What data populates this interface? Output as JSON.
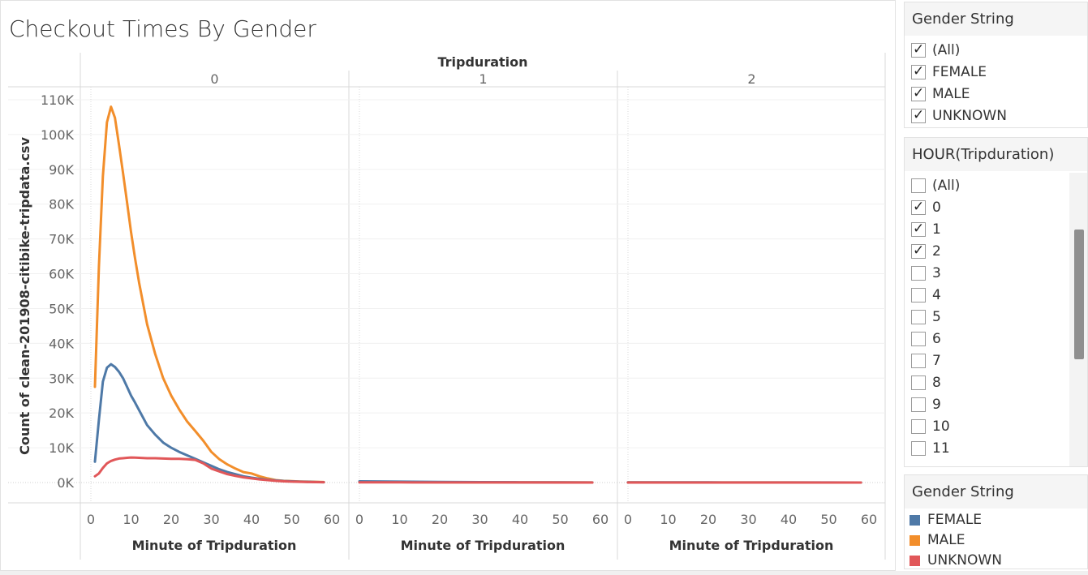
{
  "title": "Checkout Times By Gender",
  "chart_data": {
    "type": "line",
    "panel_header": "Tripduration",
    "panels": [
      "0",
      "1",
      "2"
    ],
    "xlabel": "Minute of Tripduration",
    "ylabel": "Count of clean-201908-citibike-tripdata.csv",
    "xlim": [
      0,
      60
    ],
    "ylim": [
      0,
      115000
    ],
    "x_ticks": [
      0,
      10,
      20,
      30,
      40,
      50,
      60
    ],
    "x_tick_labels": [
      "0",
      "10",
      "20",
      "30",
      "40",
      "50",
      "60"
    ],
    "y_ticks": [
      0,
      10000,
      20000,
      30000,
      40000,
      50000,
      60000,
      70000,
      80000,
      90000,
      100000,
      110000
    ],
    "y_tick_labels": [
      "0K",
      "10K",
      "20K",
      "30K",
      "40K",
      "50K",
      "60K",
      "70K",
      "80K",
      "90K",
      "100K",
      "110K"
    ],
    "colors": {
      "FEMALE": "#4e79a7",
      "MALE": "#f28e2b",
      "UNKNOWN": "#e15759"
    },
    "series": [
      {
        "name": "MALE",
        "panel": "0",
        "x": [
          1,
          2,
          3,
          4,
          5,
          6,
          7,
          8,
          9,
          10,
          11,
          12,
          14,
          16,
          18,
          20,
          22,
          24,
          26,
          28,
          30,
          32,
          34,
          36,
          38,
          40,
          42,
          44,
          46,
          48,
          50,
          52,
          54,
          56,
          58
        ],
        "values": [
          27500,
          62000,
          88000,
          103500,
          108000,
          104800,
          97000,
          89000,
          80500,
          72000,
          64500,
          57500,
          45500,
          37000,
          30000,
          25000,
          21000,
          17500,
          14800,
          12000,
          8800,
          6700,
          5200,
          4000,
          3000,
          2600,
          1800,
          1200,
          700,
          500,
          400,
          300,
          250,
          200,
          150
        ]
      },
      {
        "name": "FEMALE",
        "panel": "0",
        "x": [
          1,
          2,
          3,
          4,
          5,
          6,
          7,
          8,
          9,
          10,
          11,
          12,
          14,
          16,
          18,
          20,
          22,
          24,
          26,
          28,
          30,
          32,
          34,
          36,
          38,
          40,
          42,
          44,
          46,
          48,
          50,
          52,
          54,
          56,
          58
        ],
        "values": [
          6000,
          18000,
          29000,
          33000,
          34000,
          33200,
          31800,
          30000,
          27500,
          25000,
          23000,
          20800,
          16500,
          13800,
          11500,
          10000,
          8800,
          7800,
          6800,
          5800,
          4800,
          3800,
          3000,
          2400,
          1800,
          1400,
          1100,
          800,
          600,
          450,
          350,
          250,
          200,
          150,
          100
        ]
      },
      {
        "name": "UNKNOWN",
        "panel": "0",
        "x": [
          1,
          2,
          3,
          4,
          5,
          6,
          7,
          8,
          9,
          10,
          11,
          12,
          14,
          16,
          18,
          20,
          22,
          24,
          26,
          28,
          30,
          32,
          34,
          36,
          38,
          40,
          42,
          44,
          46,
          48,
          50,
          52,
          54,
          56,
          58
        ],
        "values": [
          1800,
          2600,
          4200,
          5500,
          6200,
          6600,
          6900,
          7000,
          7100,
          7200,
          7150,
          7100,
          7000,
          7000,
          6900,
          6800,
          6800,
          6700,
          6500,
          5500,
          4000,
          3200,
          2400,
          1900,
          1500,
          1200,
          900,
          700,
          500,
          350,
          250,
          200,
          150,
          120,
          100
        ]
      },
      {
        "name": "MALE",
        "panel": "1",
        "x": [
          0,
          10,
          20,
          30,
          40,
          50,
          58
        ],
        "values": [
          200,
          150,
          100,
          80,
          60,
          40,
          20
        ]
      },
      {
        "name": "FEMALE",
        "panel": "1",
        "x": [
          0,
          10,
          20,
          30,
          40,
          50,
          58
        ],
        "values": [
          350,
          250,
          180,
          120,
          80,
          50,
          30
        ]
      },
      {
        "name": "UNKNOWN",
        "panel": "1",
        "x": [
          0,
          10,
          20,
          30,
          40,
          50,
          58
        ],
        "values": [
          60,
          40,
          30,
          20,
          15,
          10,
          5
        ]
      },
      {
        "name": "MALE",
        "panel": "2",
        "x": [
          0,
          10,
          20,
          30,
          40,
          50,
          58
        ],
        "values": [
          40,
          30,
          25,
          20,
          15,
          10,
          5
        ]
      },
      {
        "name": "FEMALE",
        "panel": "2",
        "x": [
          0,
          10,
          20,
          30,
          40,
          50,
          58
        ],
        "values": [
          60,
          45,
          35,
          25,
          20,
          15,
          10
        ]
      },
      {
        "name": "UNKNOWN",
        "panel": "2",
        "x": [
          0,
          10,
          20,
          30,
          40,
          50,
          58
        ],
        "values": [
          10,
          8,
          6,
          5,
          4,
          3,
          2
        ]
      }
    ]
  },
  "filters": {
    "gender": {
      "title": "Gender String",
      "items": [
        {
          "label": "(All)",
          "checked": true
        },
        {
          "label": "FEMALE",
          "checked": true
        },
        {
          "label": "MALE",
          "checked": true
        },
        {
          "label": "UNKNOWN",
          "checked": true
        }
      ]
    },
    "hour": {
      "title": "HOUR(Tripduration)",
      "items": [
        {
          "label": "(All)",
          "checked": false
        },
        {
          "label": "0",
          "checked": true
        },
        {
          "label": "1",
          "checked": true
        },
        {
          "label": "2",
          "checked": true
        },
        {
          "label": "3",
          "checked": false
        },
        {
          "label": "4",
          "checked": false
        },
        {
          "label": "5",
          "checked": false
        },
        {
          "label": "6",
          "checked": false
        },
        {
          "label": "7",
          "checked": false
        },
        {
          "label": "8",
          "checked": false
        },
        {
          "label": "9",
          "checked": false
        },
        {
          "label": "10",
          "checked": false
        },
        {
          "label": "11",
          "checked": false
        }
      ]
    }
  },
  "legend": {
    "title": "Gender String",
    "items": [
      {
        "label": "FEMALE",
        "color": "#4e79a7"
      },
      {
        "label": "MALE",
        "color": "#f28e2b"
      },
      {
        "label": "UNKNOWN",
        "color": "#e15759"
      }
    ]
  }
}
